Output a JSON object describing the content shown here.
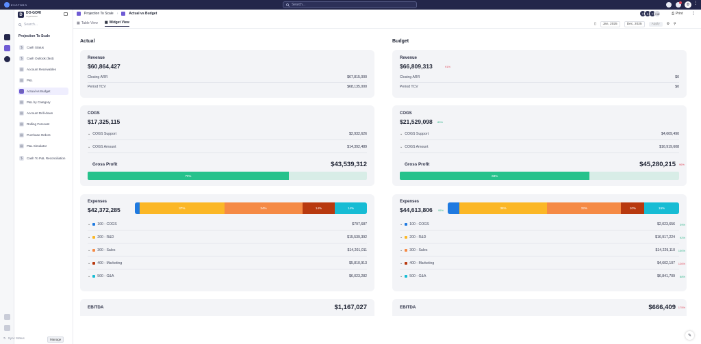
{
  "topbar": {
    "search_placeholder": "Search...",
    "logo_text": "EVOTORO"
  },
  "org": {
    "initial": "D",
    "name": "DO-GORI",
    "sub": "Organization"
  },
  "nav": {
    "search_placeholder": "Search...",
    "heading": "Projection To Scale",
    "items": [
      {
        "label": "Cash Status",
        "icon": "$"
      },
      {
        "label": "Cash Outlook (fast)",
        "icon": "$"
      },
      {
        "label": "Account Receivables",
        "icon": "▤"
      },
      {
        "label": "P&L",
        "icon": "▤"
      },
      {
        "label": "Actual vs Budget",
        "icon": "▤"
      },
      {
        "label": "P&L by Category",
        "icon": "▤"
      },
      {
        "label": "Account Drill-down",
        "icon": "▤"
      },
      {
        "label": "Rolling Forecast",
        "icon": "▤"
      },
      {
        "label": "Purchase Orders",
        "icon": "▤"
      },
      {
        "label": "P&L Simulator",
        "icon": "▤"
      },
      {
        "label": "Cash To P&L Reconciliation",
        "icon": "$"
      }
    ],
    "sync_status": "Sync Status",
    "manage": "Manage"
  },
  "breadcrumb": {
    "root": "Projection To Scale",
    "current": "Actual vs Budget"
  },
  "tabs": [
    {
      "label": "Table View"
    },
    {
      "label": "Widget View"
    }
  ],
  "header_right": {
    "avatars": [
      "T",
      "S",
      "T"
    ],
    "more": "+16",
    "user_initial": "D",
    "print": "Print"
  },
  "filters": {
    "start": "Jan, 2025",
    "end": "Dec, 2025",
    "apply": "Apply"
  },
  "colors": {
    "green": "#26c28c",
    "red": "#e0495b",
    "cogs": "#1f7ae0",
    "rd": "#fbb726",
    "sales": "#f58a45",
    "marketing": "#b8390f",
    "ga": "#17bcd4"
  },
  "actual": {
    "title": "Actual",
    "revenue": {
      "label": "Revenue",
      "total": "$60,864,427",
      "closing_arr_label": "Closing ARR",
      "closing_arr": "$67,815,000",
      "tcv_label": "Period TCV",
      "tcv": "$68,135,000"
    },
    "cogs": {
      "label": "COGS",
      "total": "$17,325,115",
      "support_label": "COGS Support",
      "support": "$2,932,626",
      "amount_label": "COGS Amount",
      "amount": "$14,392,489"
    },
    "gross_profit": {
      "label": "Gross Profit",
      "value": "$43,539,312",
      "pct_text": "72%",
      "pct": 0.72
    },
    "expenses": {
      "label": "Expenses",
      "total": "$42,372,285",
      "segments": [
        {
          "pct": 0.02,
          "text": ""
        },
        {
          "pct": 0.37,
          "text": "37%"
        },
        {
          "pct": 0.34,
          "text": "34%"
        },
        {
          "pct": 0.14,
          "text": "14%"
        },
        {
          "pct": 0.14,
          "text": "14%"
        }
      ],
      "rows": [
        {
          "label": "100 - COGS",
          "value": "$797,687"
        },
        {
          "label": "200 - R&D",
          "value": "$15,539,392"
        },
        {
          "label": "300 - Sales",
          "value": "$14,201,011"
        },
        {
          "label": "400 - Marketing",
          "value": "$5,810,913"
        },
        {
          "label": "500 - G&A",
          "value": "$6,023,282"
        }
      ]
    },
    "ebitda": {
      "label": "EBITDA",
      "value": "$1,167,027"
    }
  },
  "budget": {
    "title": "Budget",
    "revenue": {
      "label": "Revenue",
      "total": "$66,809,313",
      "delta": "91%",
      "closing_arr_label": "Closing ARR",
      "closing_arr": "$0",
      "tcv_label": "Period TCV",
      "tcv": "$0"
    },
    "cogs": {
      "label": "COGS",
      "total": "$21,529,098",
      "delta": "80%",
      "support_label": "COGS Support",
      "support": "$4,609,490",
      "amount_label": "COGS Amount",
      "amount": "$16,919,608"
    },
    "gross_profit": {
      "label": "Gross Profit",
      "value": "$45,280,215",
      "delta": "96%",
      "pct_text": "68%",
      "pct": 0.68
    },
    "expenses": {
      "label": "Expenses",
      "total": "$44,613,806",
      "delta": "95%",
      "segments": [
        {
          "pct": 0.05,
          "text": ""
        },
        {
          "pct": 0.38,
          "text": "38%"
        },
        {
          "pct": 0.32,
          "text": "32%"
        },
        {
          "pct": 0.1,
          "text": "10%"
        },
        {
          "pct": 0.15,
          "text": "15%"
        }
      ],
      "rows": [
        {
          "label": "100 - COGS",
          "value": "$2,023,656",
          "delta": "39%",
          "delta_color": "green"
        },
        {
          "label": "200 - R&D",
          "value": "$16,917,224",
          "delta": "92%",
          "delta_color": "green"
        },
        {
          "label": "300 - Sales",
          "value": "$14,229,110",
          "delta": "100%",
          "delta_color": "green"
        },
        {
          "label": "400 - Marketing",
          "value": "$4,602,107",
          "delta": "126%",
          "delta_color": "red"
        },
        {
          "label": "500 - G&A",
          "value": "$6,841,709",
          "delta": "88%",
          "delta_color": "green"
        }
      ]
    },
    "ebitda": {
      "label": "EBITDA",
      "value": "$666,409",
      "delta": "175%"
    }
  }
}
